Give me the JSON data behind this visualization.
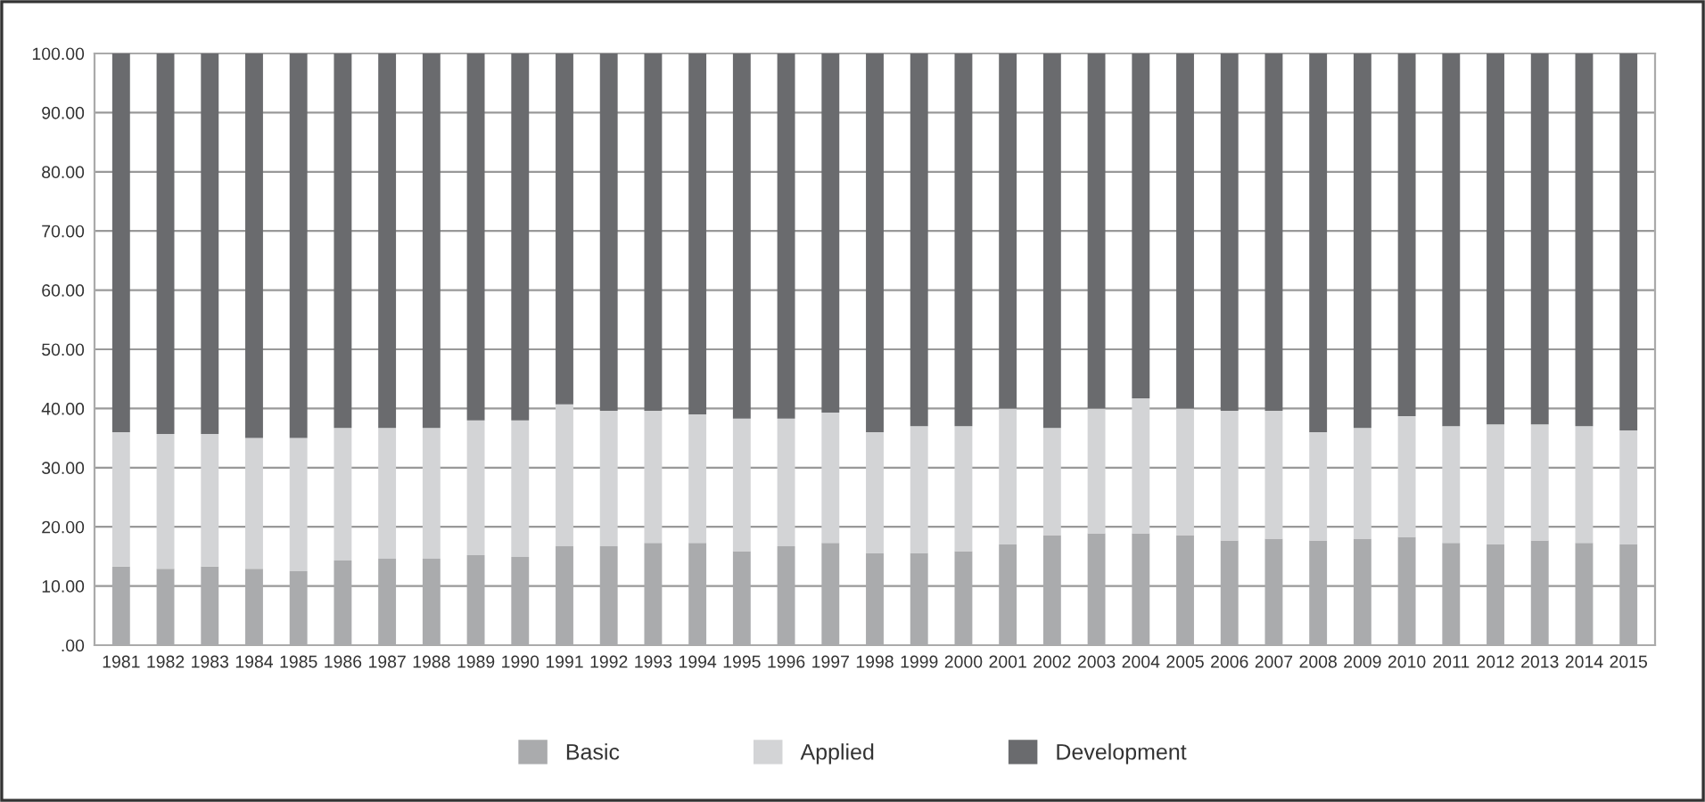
{
  "chart_data": {
    "type": "bar",
    "stacked": true,
    "categories": [
      "1981",
      "1982",
      "1983",
      "1984",
      "1985",
      "1986",
      "1987",
      "1988",
      "1989",
      "1990",
      "1991",
      "1992",
      "1993",
      "1994",
      "1995",
      "1996",
      "1997",
      "1998",
      "1999",
      "2000",
      "2001",
      "2002",
      "2003",
      "2004",
      "2005",
      "2006",
      "2007",
      "2008",
      "2009",
      "2010",
      "2011",
      "2012",
      "2013",
      "2014",
      "2015"
    ],
    "series": [
      {
        "name": "Basic",
        "color": "#aaabad",
        "values": [
          13.3,
          12.9,
          13.3,
          12.9,
          12.5,
          14.3,
          14.6,
          14.6,
          15.2,
          14.9,
          16.7,
          16.7,
          17.3,
          17.3,
          15.9,
          16.7,
          17.3,
          15.6,
          15.6,
          15.9,
          17.0,
          18.6,
          18.9,
          18.9,
          18.6,
          17.7,
          18.0,
          17.7,
          18.0,
          18.3,
          17.3,
          17.0,
          17.7,
          17.3,
          17.0
        ]
      },
      {
        "name": "Applied",
        "color": "#d3d4d6",
        "values": [
          22.7,
          22.8,
          22.4,
          22.1,
          22.5,
          22.4,
          22.1,
          22.1,
          22.8,
          23.1,
          24.0,
          22.9,
          22.3,
          21.7,
          22.4,
          21.6,
          22.0,
          20.4,
          21.4,
          21.1,
          23.0,
          18.1,
          21.1,
          22.8,
          21.4,
          21.9,
          21.6,
          18.3,
          18.7,
          20.4,
          19.7,
          20.3,
          19.6,
          19.7,
          19.3
        ]
      },
      {
        "name": "Development",
        "color": "#6a6b6e",
        "values": [
          64.0,
          64.3,
          64.3,
          65.0,
          65.0,
          63.3,
          63.3,
          63.3,
          62.0,
          62.0,
          59.3,
          60.4,
          60.4,
          61.0,
          61.7,
          61.7,
          60.7,
          64.0,
          63.0,
          63.0,
          60.0,
          63.3,
          60.0,
          58.3,
          60.0,
          60.4,
          60.4,
          64.0,
          63.3,
          61.3,
          63.0,
          62.7,
          62.7,
          63.0,
          63.7
        ]
      }
    ],
    "ylim": [
      0,
      100
    ],
    "yticks": [
      {
        "value": 0,
        "label": ".00"
      },
      {
        "value": 10,
        "label": "10.00"
      },
      {
        "value": 20,
        "label": "20.00"
      },
      {
        "value": 30,
        "label": "30.00"
      },
      {
        "value": 40,
        "label": "40.00"
      },
      {
        "value": 50,
        "label": "50.00"
      },
      {
        "value": 60,
        "label": "60.00"
      },
      {
        "value": 70,
        "label": "70.00"
      },
      {
        "value": 80,
        "label": "80.00"
      },
      {
        "value": 90,
        "label": "90.00"
      },
      {
        "value": 100,
        "label": "100.00"
      }
    ],
    "grid": "y",
    "legend": "bottom"
  }
}
